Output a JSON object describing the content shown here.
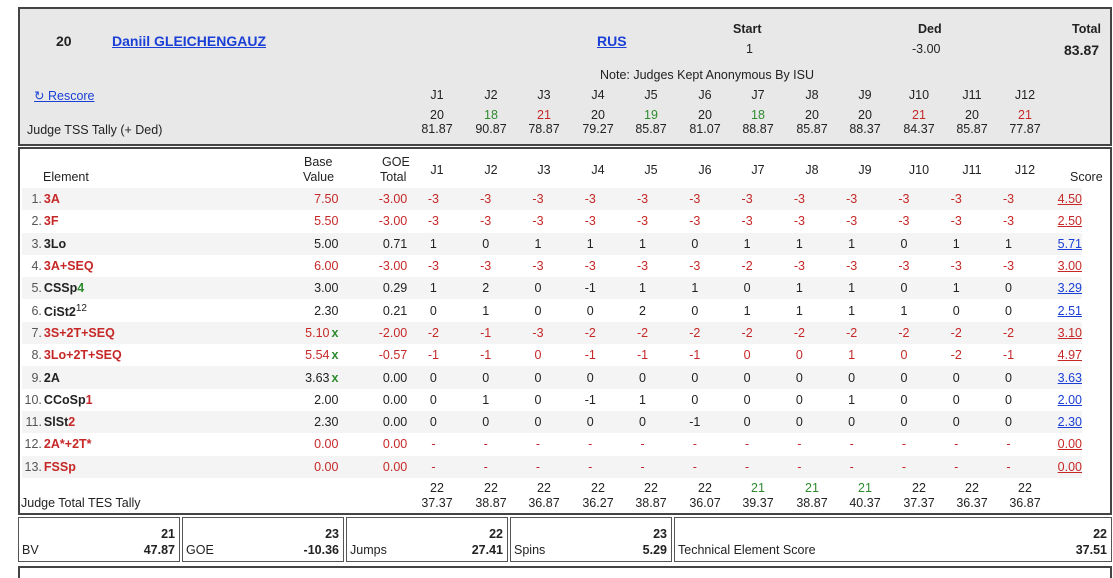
{
  "header": {
    "rank": "20",
    "skater_name": "Daniil GLEICHENGAUZ",
    "nation": "RUS",
    "start_label": "Start",
    "start_value": "1",
    "ded_label": "Ded",
    "ded_value": "-3.00",
    "total_label": "Total",
    "total_value": "83.87",
    "note": "Note: Judges Kept Anonymous By ISU",
    "rescore_label": "Rescore",
    "tss_label": "Judge TSS Tally (+ Ded)",
    "judges": [
      "J1",
      "J2",
      "J3",
      "J4",
      "J5",
      "J6",
      "J7",
      "J8",
      "J9",
      "J10",
      "J11",
      "J12"
    ],
    "tss_rank": [
      "20",
      "18",
      "21",
      "20",
      "19",
      "20",
      "18",
      "20",
      "20",
      "21",
      "20",
      "21"
    ],
    "tss_rank_color": [
      "blk",
      "green",
      "red",
      "blk",
      "green",
      "blk",
      "green",
      "blk",
      "blk",
      "red",
      "blk",
      "red"
    ],
    "tss_value": [
      "81.87",
      "90.87",
      "78.87",
      "79.27",
      "85.87",
      "81.07",
      "88.87",
      "85.87",
      "88.37",
      "84.37",
      "85.87",
      "77.87"
    ]
  },
  "elements": {
    "col_element": "Element",
    "col_base": "Base",
    "col_base2": "Value",
    "col_goe": "GOE",
    "col_goe2": "Total",
    "col_score": "Score",
    "rows": [
      {
        "num": "1.",
        "code": "3A",
        "sup": "",
        "mark": "",
        "base": "7.50",
        "goe": "-3.00",
        "j": [
          "-3",
          "-3",
          "-3",
          "-3",
          "-3",
          "-3",
          "-3",
          "-3",
          "-3",
          "-3",
          "-3",
          "-3"
        ],
        "score": "4.50",
        "color": "red"
      },
      {
        "num": "2.",
        "code": "3F",
        "sup": "",
        "mark": "",
        "base": "5.50",
        "goe": "-3.00",
        "j": [
          "-3",
          "-3",
          "-3",
          "-3",
          "-3",
          "-3",
          "-3",
          "-3",
          "-3",
          "-3",
          "-3",
          "-3"
        ],
        "score": "2.50",
        "color": "red"
      },
      {
        "num": "3.",
        "code": "3Lo",
        "sup": "",
        "mark": "",
        "base": "5.00",
        "goe": "0.71",
        "j": [
          "1",
          "0",
          "1",
          "1",
          "1",
          "0",
          "1",
          "1",
          "1",
          "0",
          "1",
          "1"
        ],
        "score": "5.71",
        "color": "blk"
      },
      {
        "num": "4.",
        "code": "3A+SEQ",
        "sup": "",
        "mark": "",
        "base": "6.00",
        "goe": "-3.00",
        "j": [
          "-3",
          "-3",
          "-3",
          "-3",
          "-3",
          "-3",
          "-2",
          "-3",
          "-3",
          "-3",
          "-3",
          "-3"
        ],
        "score": "3.00",
        "color": "red"
      },
      {
        "num": "5.",
        "code": "CSSp",
        "level": "4",
        "sup": "",
        "mark": "",
        "base": "3.00",
        "goe": "0.29",
        "j": [
          "1",
          "2",
          "0",
          "-1",
          "1",
          "1",
          "0",
          "1",
          "1",
          "0",
          "1",
          "0"
        ],
        "score": "3.29",
        "color": "blk"
      },
      {
        "num": "6.",
        "code": "CiSt2",
        "sup": "12",
        "mark": "",
        "base": "2.30",
        "goe": "0.21",
        "j": [
          "0",
          "1",
          "0",
          "0",
          "2",
          "0",
          "1",
          "1",
          "1",
          "1",
          "0",
          "0"
        ],
        "score": "2.51",
        "color": "blk"
      },
      {
        "num": "7.",
        "code": "3S+2T+SEQ",
        "sup": "",
        "mark": "x",
        "base": "5.10",
        "goe": "-2.00",
        "j": [
          "-2",
          "-1",
          "-3",
          "-2",
          "-2",
          "-2",
          "-2",
          "-2",
          "-2",
          "-2",
          "-2",
          "-2"
        ],
        "score": "3.10",
        "color": "red"
      },
      {
        "num": "8.",
        "code": "3Lo+2T+SEQ",
        "sup": "",
        "mark": "x",
        "base": "5.54",
        "goe": "-0.57",
        "j": [
          "-1",
          "-1",
          "0",
          "-1",
          "-1",
          "-1",
          "0",
          "0",
          "1",
          "0",
          "-2",
          "-1"
        ],
        "score": "4.97",
        "color": "red"
      },
      {
        "num": "9.",
        "code": "2A",
        "sup": "",
        "mark": "x",
        "base": "3.63",
        "goe": "0.00",
        "j": [
          "0",
          "0",
          "0",
          "0",
          "0",
          "0",
          "0",
          "0",
          "0",
          "0",
          "0",
          "0"
        ],
        "score": "3.63",
        "color": "blk"
      },
      {
        "num": "10.",
        "code": "CCoSp",
        "level": "1",
        "sup": "",
        "mark": "",
        "base": "2.00",
        "goe": "0.00",
        "j": [
          "0",
          "1",
          "0",
          "-1",
          "1",
          "0",
          "0",
          "0",
          "1",
          "0",
          "0",
          "0"
        ],
        "score": "2.00",
        "color": "blk"
      },
      {
        "num": "11.",
        "code": "SlSt",
        "level": "2",
        "sup": "",
        "mark": "",
        "base": "2.30",
        "goe": "0.00",
        "j": [
          "0",
          "0",
          "0",
          "0",
          "0",
          "-1",
          "0",
          "0",
          "0",
          "0",
          "0",
          "0"
        ],
        "score": "2.30",
        "color": "blk"
      },
      {
        "num": "12.",
        "code": "2A*+2T*",
        "sup": "",
        "mark": "",
        "base": "0.00",
        "goe": "0.00",
        "j": [
          "-",
          "-",
          "-",
          "-",
          "-",
          "-",
          "-",
          "-",
          "-",
          "-",
          "-",
          "-"
        ],
        "score": "0.00",
        "color": "red"
      },
      {
        "num": "13.",
        "code": "FSSp",
        "sup": "",
        "mark": "",
        "base": "0.00",
        "goe": "0.00",
        "j": [
          "-",
          "-",
          "-",
          "-",
          "-",
          "-",
          "-",
          "-",
          "-",
          "-",
          "-",
          "-"
        ],
        "score": "0.00",
        "color": "red"
      }
    ],
    "tes_label": "Judge Total TES Tally",
    "tes_rank": [
      "22",
      "22",
      "22",
      "22",
      "22",
      "22",
      "21",
      "21",
      "21",
      "22",
      "22",
      "22"
    ],
    "tes_rank_color": [
      "blk",
      "blk",
      "blk",
      "blk",
      "blk",
      "blk",
      "green",
      "green",
      "green",
      "blk",
      "blk",
      "blk"
    ],
    "tes_value": [
      "37.37",
      "38.87",
      "36.87",
      "36.27",
      "38.87",
      "36.07",
      "39.37",
      "38.87",
      "40.37",
      "37.37",
      "36.37",
      "36.87"
    ]
  },
  "summary": {
    "bv_label": "BV",
    "bv_rank": "21",
    "bv_value": "47.87",
    "goe_label": "GOE",
    "goe_rank": "23",
    "goe_value": "-10.36",
    "jumps_label": "Jumps",
    "jumps_rank": "22",
    "jumps_value": "27.41",
    "spins_label": "Spins",
    "spins_rank": "23",
    "spins_value": "5.29",
    "tes_label": "Technical Element Score",
    "tes_rank": "22",
    "tes_value": "37.51"
  },
  "colors": {
    "red": "#c62828",
    "green": "#2e8b2e",
    "link": "#1a3fd6"
  }
}
